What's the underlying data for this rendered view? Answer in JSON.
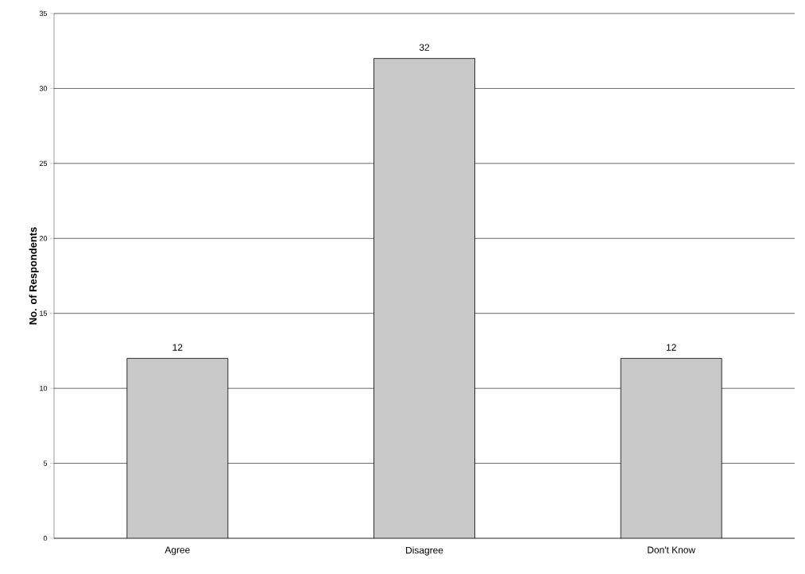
{
  "chart_data": {
    "type": "bar",
    "ylabel": "No. of Respondents",
    "categories": [
      "Agree",
      "Disagree",
      "Don't Know"
    ],
    "values": [
      12,
      32,
      12
    ],
    "color": "#c8c8c8",
    "ylim": [
      0,
      35
    ],
    "yticks": [
      0,
      5,
      10,
      15,
      20,
      25,
      30,
      35
    ],
    "grid": "y",
    "data_labels": true
  }
}
